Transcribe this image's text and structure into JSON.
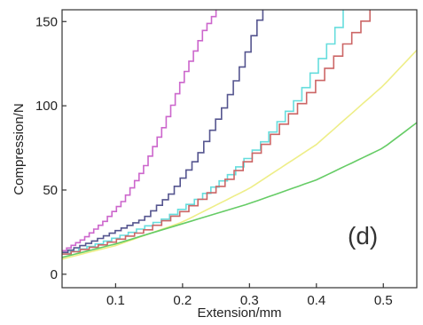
{
  "chart_data": {
    "type": "line",
    "title": "",
    "panel_label": "(d)",
    "xlabel": "Extension/mm",
    "ylabel": "Compression/N",
    "xlim": [
      0.02,
      0.55
    ],
    "ylim": [
      -8,
      157
    ],
    "x_ticks": [
      0.1,
      0.2,
      0.3,
      0.4,
      0.5
    ],
    "x_tick_labels": [
      "0.1",
      "0.2",
      "0.3",
      "0.4",
      "0.5"
    ],
    "y_ticks": [
      0,
      50,
      100,
      150
    ],
    "y_tick_labels": [
      "0",
      "50",
      "100",
      "150"
    ],
    "grid": false,
    "legend": false,
    "series": [
      {
        "color": "#cc66cc",
        "style": "stepped",
        "x": [
          0.02,
          0.05,
          0.08,
          0.11,
          0.14,
          0.17,
          0.2,
          0.23,
          0.25
        ],
        "y": [
          14,
          21,
          31,
          44,
          63,
          88,
          118,
          145,
          157
        ]
      },
      {
        "color": "#55558f",
        "style": "stepped",
        "x": [
          0.02,
          0.06,
          0.1,
          0.14,
          0.18,
          0.22,
          0.26,
          0.29,
          0.31,
          0.32
        ],
        "y": [
          13,
          19,
          26,
          33,
          48,
          70,
          100,
          128,
          150,
          157
        ]
      },
      {
        "color": "#66dddd",
        "style": "stepped",
        "x": [
          0.02,
          0.07,
          0.12,
          0.17,
          0.22,
          0.27,
          0.32,
          0.37,
          0.42,
          0.44
        ],
        "y": [
          12,
          18,
          25,
          33,
          45,
          60,
          80,
          105,
          140,
          157
        ]
      },
      {
        "color": "#cc6666",
        "style": "stepped",
        "x": [
          0.02,
          0.08,
          0.14,
          0.2,
          0.26,
          0.32,
          0.38,
          0.44,
          0.48
        ],
        "y": [
          12,
          18,
          26,
          38,
          55,
          78,
          105,
          137,
          157
        ]
      },
      {
        "color": "#eeee88",
        "style": "smooth",
        "x": [
          0.02,
          0.1,
          0.2,
          0.3,
          0.4,
          0.5,
          0.55
        ],
        "y": [
          9,
          17,
          31,
          51,
          77,
          112,
          133
        ]
      },
      {
        "color": "#66cc66",
        "style": "smooth",
        "x": [
          0.02,
          0.1,
          0.2,
          0.3,
          0.4,
          0.5,
          0.55
        ],
        "y": [
          10,
          18,
          30,
          42,
          56,
          75,
          90
        ]
      }
    ]
  }
}
